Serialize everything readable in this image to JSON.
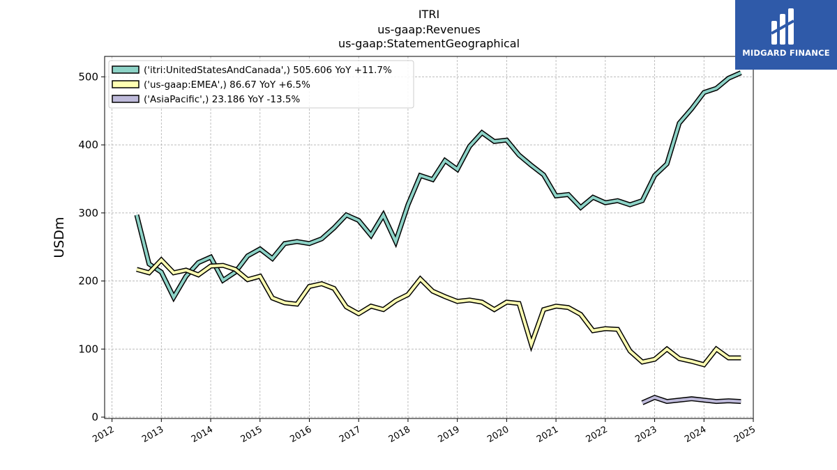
{
  "chart_data": {
    "type": "line",
    "title_lines": [
      "ITRI",
      "us-gaap:Revenues",
      "us-gaap:StatementGeographical"
    ],
    "ylabel": "USDm",
    "xlabel": "",
    "xlim": [
      2011.85,
      2025.0
    ],
    "ylim": [
      -2,
      530
    ],
    "yticks": [
      0,
      100,
      200,
      300,
      400,
      500
    ],
    "xticks": [
      2012,
      2013,
      2014,
      2015,
      2016,
      2017,
      2018,
      2019,
      2020,
      2021,
      2022,
      2023,
      2024,
      2025
    ],
    "grid": true,
    "legend_position": "top-left",
    "series": [
      {
        "name": "('itri:UnitedStatesAndCanada',) 505.606 YoY +11.7%",
        "color": "#8dd3c7",
        "x": [
          2012.5,
          2012.75,
          2013.0,
          2013.25,
          2013.5,
          2013.75,
          2014.0,
          2014.25,
          2014.5,
          2014.75,
          2015.0,
          2015.25,
          2015.5,
          2015.75,
          2016.0,
          2016.25,
          2016.5,
          2016.75,
          2017.0,
          2017.25,
          2017.5,
          2017.75,
          2018.0,
          2018.25,
          2018.5,
          2018.75,
          2019.0,
          2019.25,
          2019.5,
          2019.75,
          2020.0,
          2020.25,
          2020.5,
          2020.75,
          2021.0,
          2021.25,
          2021.5,
          2021.75,
          2022.0,
          2022.25,
          2022.5,
          2022.75,
          2023.0,
          2023.25,
          2023.5,
          2023.75,
          2024.0,
          2024.25,
          2024.5,
          2024.75
        ],
        "values": [
          297,
          225,
          213,
          176,
          207,
          227,
          235,
          201,
          213,
          237,
          247,
          233,
          255,
          258,
          255,
          262,
          278,
          297,
          289,
          267,
          297,
          258,
          312,
          355,
          349,
          377,
          364,
          398,
          418,
          405,
          407,
          385,
          370,
          356,
          325,
          327,
          308,
          323,
          315,
          318,
          312,
          318,
          355,
          372,
          432,
          453,
          477,
          483,
          498,
          506
        ]
      },
      {
        "name": "('us-gaap:EMEA',) 86.67 YoY +6.5%",
        "color": "#ffffb3",
        "x": [
          2012.5,
          2012.75,
          2013.0,
          2013.25,
          2013.5,
          2013.75,
          2014.0,
          2014.25,
          2014.5,
          2014.75,
          2015.0,
          2015.25,
          2015.5,
          2015.75,
          2016.0,
          2016.25,
          2016.5,
          2016.75,
          2017.0,
          2017.25,
          2017.5,
          2017.75,
          2018.0,
          2018.25,
          2018.5,
          2018.75,
          2019.0,
          2019.25,
          2019.5,
          2019.75,
          2020.0,
          2020.25,
          2020.5,
          2020.75,
          2021.0,
          2021.25,
          2021.5,
          2021.75,
          2022.0,
          2022.25,
          2022.5,
          2022.75,
          2023.0,
          2023.25,
          2023.5,
          2023.75,
          2024.0,
          2024.25,
          2024.5,
          2024.75
        ],
        "values": [
          217,
          212,
          231,
          212,
          216,
          209,
          222,
          223,
          217,
          202,
          207,
          175,
          168,
          166,
          192,
          196,
          189,
          162,
          152,
          163,
          158,
          171,
          180,
          203,
          185,
          177,
          170,
          172,
          169,
          158,
          169,
          167,
          107,
          158,
          163,
          161,
          151,
          127,
          130,
          129,
          97,
          81,
          85,
          100,
          86,
          82,
          77,
          100,
          87,
          87
        ]
      },
      {
        "name": "('AsiaPacific',) 23.186 YoY -13.5%",
        "color": "#bebada",
        "x": [
          2022.75,
          2023.0,
          2023.25,
          2023.5,
          2023.75,
          2024.0,
          2024.25,
          2024.5,
          2024.75
        ],
        "values": [
          21,
          29,
          23,
          25,
          27,
          25,
          23,
          24,
          23
        ]
      }
    ]
  },
  "branding": {
    "logo_text": "MIDGARD FINANCE",
    "logo_color": "#2f5aa9"
  }
}
